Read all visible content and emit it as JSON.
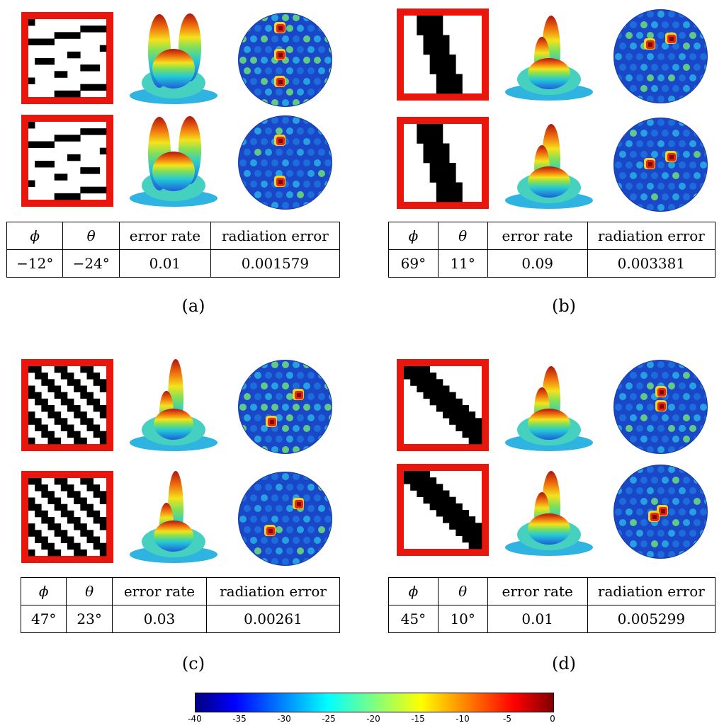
{
  "panels": [
    {
      "id": "a",
      "caption": "(a)",
      "phi": "−12°",
      "theta": "−24°",
      "error_rate": "0.01",
      "radiation_error": "0.001579"
    },
    {
      "id": "b",
      "caption": "(b)",
      "phi": "69°",
      "theta": "11°",
      "error_rate": "0.09",
      "radiation_error": "0.003381"
    },
    {
      "id": "c",
      "caption": "(c)",
      "phi": "47°",
      "theta": "23°",
      "error_rate": "0.03",
      "radiation_error": "0.00261"
    },
    {
      "id": "d",
      "caption": "(d)",
      "phi": "45°",
      "theta": "10°",
      "error_rate": "0.01",
      "radiation_error": "0.005299"
    }
  ],
  "table_headers": {
    "phi": "ϕ",
    "theta": "θ",
    "error_rate": "error rate",
    "radiation_error": "radiation error"
  },
  "colorbar": {
    "ticks": [
      "-40",
      "-35",
      "-30",
      "-25",
      "-20",
      "-15",
      "-10",
      "-5",
      "0"
    ],
    "range": [
      -40,
      0
    ],
    "colormap": "jet"
  },
  "colors": {
    "frame": "#e8160c",
    "black_cell": "#000000",
    "white_cell": "#ffffff"
  }
}
